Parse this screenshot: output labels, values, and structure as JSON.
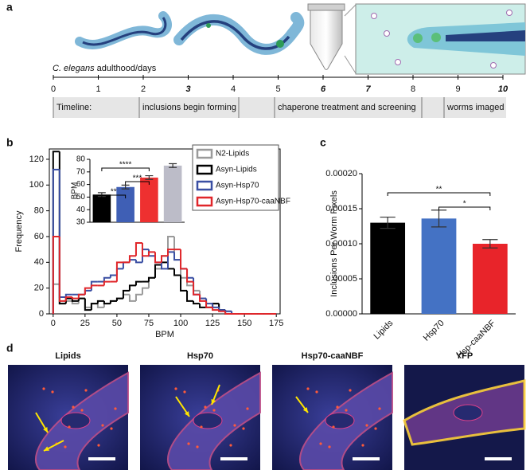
{
  "panel_labels": [
    "a",
    "b",
    "c",
    "d"
  ],
  "timeline": {
    "caption_species": "C. elegans",
    "caption_rest": "adulthood/days",
    "days": [
      0,
      1,
      2,
      3,
      4,
      5,
      6,
      7,
      8,
      9,
      10
    ],
    "emphasized": [
      3,
      6,
      7,
      10
    ],
    "stages": [
      "Timeline:",
      "inclusions begin forming",
      "chaperone treatment and screening",
      "worms imaged"
    ]
  },
  "chart_data": [
    {
      "type": "histogram",
      "xlabel": "BPM",
      "ylabel": "Frequency",
      "bins": [
        0,
        5,
        10,
        15,
        20,
        25,
        30,
        35,
        40,
        45,
        50,
        55,
        60,
        65,
        70,
        75,
        80,
        85,
        90,
        95,
        100,
        105,
        110,
        115,
        120,
        125,
        130,
        135,
        140,
        145,
        150,
        155,
        160,
        165,
        170,
        175
      ],
      "series": [
        {
          "name": "N2-Lipids",
          "color": "#9a9a9a",
          "values": [
            23,
            8,
            10,
            8,
            12,
            5,
            8,
            5,
            8,
            10,
            12,
            15,
            10,
            15,
            20,
            28,
            35,
            45,
            60,
            42,
            28,
            22,
            18,
            12,
            5,
            8,
            3,
            2,
            0,
            0,
            0,
            0,
            0,
            0,
            0
          ]
        },
        {
          "name": "Asyn-Lipids",
          "color": "#000000",
          "values": [
            126,
            8,
            12,
            10,
            12,
            3,
            8,
            10,
            8,
            10,
            12,
            18,
            22,
            25,
            25,
            28,
            38,
            40,
            35,
            30,
            18,
            10,
            8,
            5,
            5,
            8,
            3,
            0,
            0,
            0,
            0,
            0,
            0,
            0,
            0
          ]
        },
        {
          "name": "Asyn-Hsp70",
          "color": "#3a4fa3",
          "values": [
            112,
            13,
            15,
            15,
            15,
            18,
            25,
            25,
            28,
            30,
            35,
            40,
            42,
            40,
            50,
            45,
            40,
            35,
            48,
            42,
            35,
            28,
            15,
            12,
            8,
            5,
            3,
            2,
            0,
            0,
            0,
            0,
            0,
            0,
            0
          ]
        },
        {
          "name": "Asyn-Hsp70-caaNBF",
          "color": "#e0262a",
          "values": [
            60,
            10,
            13,
            12,
            15,
            20,
            22,
            22,
            25,
            25,
            40,
            40,
            45,
            55,
            45,
            48,
            40,
            45,
            50,
            50,
            35,
            25,
            15,
            10,
            5,
            3,
            2,
            0,
            0,
            0,
            0,
            0,
            0,
            0,
            0
          ]
        }
      ],
      "xlim": [
        -3,
        178
      ],
      "ylim": [
        0,
        128
      ],
      "xticks": [
        0,
        25,
        50,
        75,
        100,
        125,
        150,
        175
      ],
      "yticks": [
        0,
        20,
        40,
        60,
        80,
        100,
        120
      ],
      "legend": "upper right"
    },
    {
      "type": "bar",
      "ylabel": "BPM",
      "values": [
        52,
        58,
        65.5,
        75
      ],
      "errors": [
        1.5,
        1.5,
        1.5,
        1.5
      ],
      "colors": [
        "#000000",
        "#3f5fb5",
        "#ee3030",
        "#bcbcc8"
      ],
      "ylim": [
        30,
        80
      ],
      "yticks": [
        30,
        40,
        50,
        60,
        70,
        80
      ],
      "annotations": [
        {
          "text": "****",
          "between": [
            0,
            2
          ]
        },
        {
          "text": "***",
          "between": [
            1,
            2
          ]
        },
        {
          "text": "**",
          "between": [
            0,
            1
          ]
        }
      ]
    },
    {
      "type": "bar",
      "ylabel": "Inclusions Per Worm Pixels",
      "categories": [
        "Lipids",
        "Hsp70",
        "Hsp-caaNBF"
      ],
      "values": [
        0.00013,
        0.000136,
        0.0001
      ],
      "errors": [
        8e-06,
        1.2e-05,
        6e-06
      ],
      "colors": [
        "#000000",
        "#4472c4",
        "#e8242a"
      ],
      "ylim": [
        0,
        0.0002
      ],
      "yticks": [
        {
          "value": 0,
          "label": "0.00000"
        },
        {
          "value": 5e-05,
          "label": "0.00005"
        },
        {
          "value": 0.0001,
          "label": "0.00010"
        },
        {
          "value": 0.00015,
          "label": "0.00015"
        },
        {
          "value": 0.0002,
          "label": "0.00020"
        }
      ],
      "annotations": [
        {
          "text": "**",
          "between": [
            0,
            2
          ]
        },
        {
          "text": "*",
          "between": [
            1,
            2
          ]
        }
      ]
    }
  ],
  "images": [
    {
      "title": "Lipids"
    },
    {
      "title": "Hsp70"
    },
    {
      "title": "Hsp70-caaNBF"
    },
    {
      "title": "YFP"
    }
  ]
}
